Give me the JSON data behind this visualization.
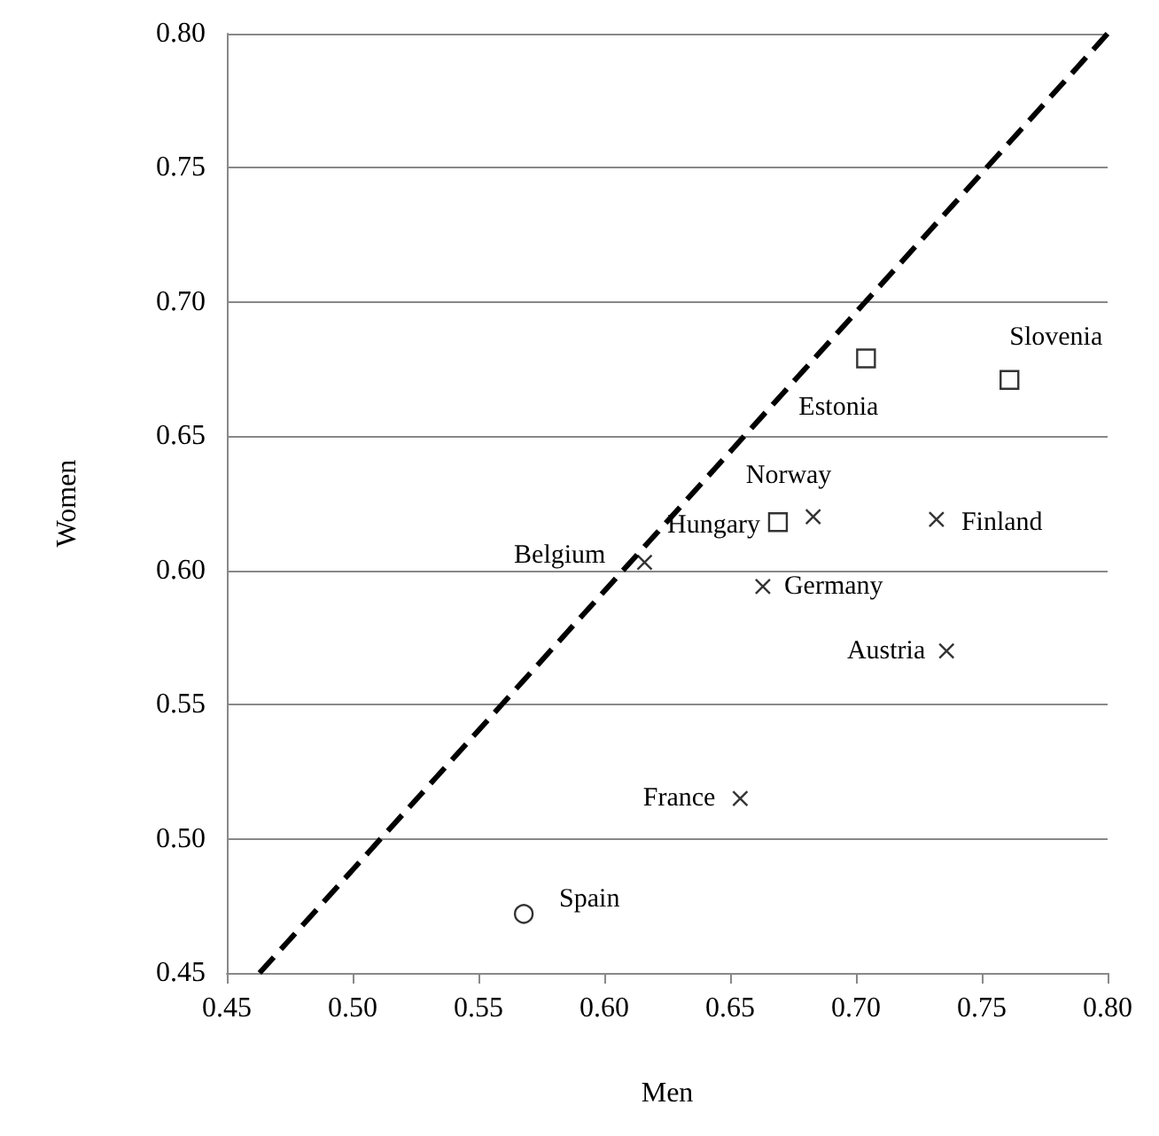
{
  "chart_data": {
    "type": "scatter",
    "xlabel": "Men",
    "ylabel": "Women",
    "xlim": [
      0.45,
      0.8
    ],
    "ylim": [
      0.45,
      0.8
    ],
    "xticks": [
      {
        "value": 0.45,
        "label": "0.45"
      },
      {
        "value": 0.5,
        "label": "0.50"
      },
      {
        "value": 0.55,
        "label": "0.55"
      },
      {
        "value": 0.6,
        "label": "0.60"
      },
      {
        "value": 0.65,
        "label": "0.65"
      },
      {
        "value": 0.7,
        "label": "0.70"
      },
      {
        "value": 0.75,
        "label": "0.75"
      },
      {
        "value": 0.8,
        "label": "0.80"
      }
    ],
    "yticks": [
      {
        "value": 0.45,
        "label": "0.45"
      },
      {
        "value": 0.5,
        "label": "0.50"
      },
      {
        "value": 0.55,
        "label": "0.55"
      },
      {
        "value": 0.6,
        "label": "0.60"
      },
      {
        "value": 0.65,
        "label": "0.65"
      },
      {
        "value": 0.7,
        "label": "0.70"
      },
      {
        "value": 0.75,
        "label": "0.75"
      },
      {
        "value": 0.8,
        "label": "0.80"
      }
    ],
    "grid": "y",
    "series": [
      {
        "color": "#000000",
        "marker": "square",
        "x": [
          0.761,
          0.704,
          0.669
        ],
        "values": [
          0.671,
          0.679,
          0.618
        ]
      },
      {
        "color": "#000000",
        "marker": "cross",
        "x": [
          0.683,
          0.732,
          0.616,
          0.663,
          0.736,
          0.654
        ],
        "values": [
          0.62,
          0.619,
          0.603,
          0.594,
          0.57,
          0.515
        ]
      },
      {
        "color": "#000000",
        "marker": "circle",
        "x": [
          0.568
        ],
        "values": [
          0.472
        ]
      },
      {
        "type": "line",
        "color": "#000000",
        "line_style": "dashed",
        "marker": "none",
        "x": [
          0.463,
          0.8
        ],
        "values": [
          0.45,
          0.8
        ]
      }
    ],
    "annotations": [
      {
        "text": "Slovenia",
        "x": 0.761,
        "y": 0.671
      },
      {
        "text": "Estonia",
        "x": 0.704,
        "y": 0.679
      },
      {
        "text": "Norway",
        "x": 0.683,
        "y": 0.62
      },
      {
        "text": "Hungary",
        "x": 0.669,
        "y": 0.618
      },
      {
        "text": "Finland",
        "x": 0.732,
        "y": 0.619
      },
      {
        "text": "Belgium",
        "x": 0.616,
        "y": 0.603
      },
      {
        "text": "Germany",
        "x": 0.663,
        "y": 0.594
      },
      {
        "text": "Austria",
        "x": 0.736,
        "y": 0.57
      },
      {
        "text": "France",
        "x": 0.654,
        "y": 0.515
      },
      {
        "text": "Spain",
        "x": 0.568,
        "y": 0.472
      }
    ]
  }
}
